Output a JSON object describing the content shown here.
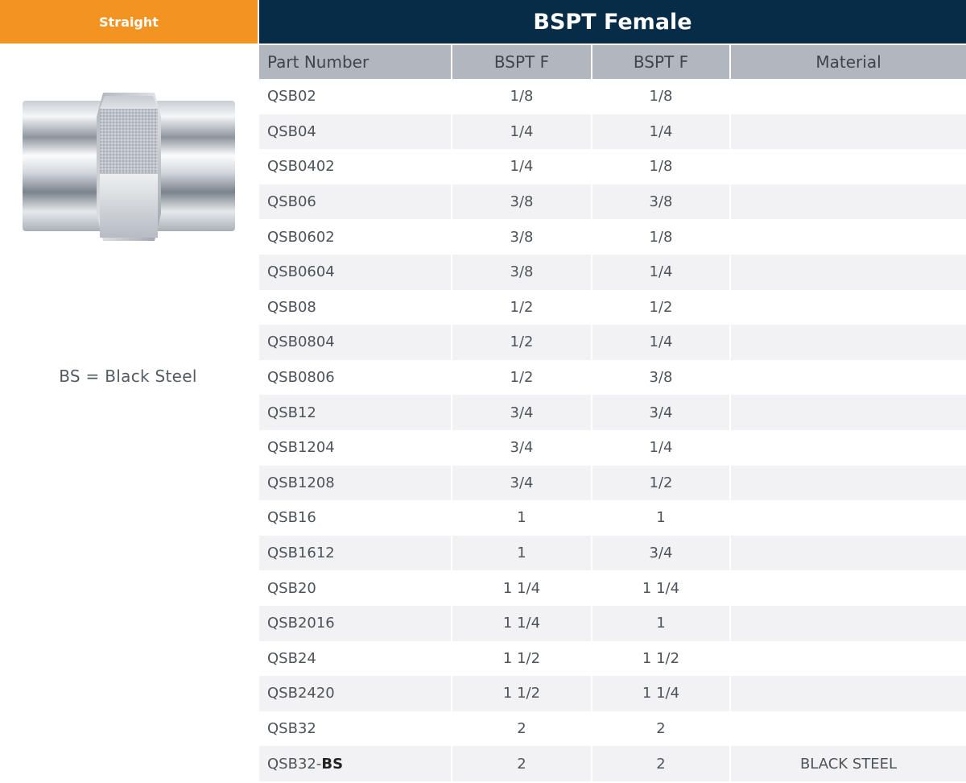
{
  "left_panel": {
    "tab_label": "Straight",
    "legend_note": "BS = Black Steel"
  },
  "table": {
    "title": "BSPT Female",
    "columns": [
      "Part Number",
      "BSPT F",
      "BSPT F",
      "Material"
    ],
    "rows": [
      {
        "part": "QSB02",
        "suffix": "",
        "f1": "1/8",
        "f2": "1/8",
        "material": ""
      },
      {
        "part": "QSB04",
        "suffix": "",
        "f1": "1/4",
        "f2": "1/4",
        "material": ""
      },
      {
        "part": "QSB0402",
        "suffix": "",
        "f1": "1/4",
        "f2": "1/8",
        "material": ""
      },
      {
        "part": "QSB06",
        "suffix": "",
        "f1": "3/8",
        "f2": "3/8",
        "material": ""
      },
      {
        "part": "QSB0602",
        "suffix": "",
        "f1": "3/8",
        "f2": "1/8",
        "material": ""
      },
      {
        "part": "QSB0604",
        "suffix": "",
        "f1": "3/8",
        "f2": "1/4",
        "material": ""
      },
      {
        "part": "QSB08",
        "suffix": "",
        "f1": "1/2",
        "f2": "1/2",
        "material": ""
      },
      {
        "part": "QSB0804",
        "suffix": "",
        "f1": "1/2",
        "f2": "1/4",
        "material": ""
      },
      {
        "part": "QSB0806",
        "suffix": "",
        "f1": "1/2",
        "f2": "3/8",
        "material": ""
      },
      {
        "part": "QSB12",
        "suffix": "",
        "f1": "3/4",
        "f2": "3/4",
        "material": ""
      },
      {
        "part": "QSB1204",
        "suffix": "",
        "f1": "3/4",
        "f2": "1/4",
        "material": ""
      },
      {
        "part": "QSB1208",
        "suffix": "",
        "f1": "3/4",
        "f2": "1/2",
        "material": ""
      },
      {
        "part": "QSB16",
        "suffix": "",
        "f1": "1",
        "f2": "1",
        "material": ""
      },
      {
        "part": "QSB1612",
        "suffix": "",
        "f1": "1",
        "f2": "3/4",
        "material": ""
      },
      {
        "part": "QSB20",
        "suffix": "",
        "f1": "1 1/4",
        "f2": "1 1/4",
        "material": ""
      },
      {
        "part": "QSB2016",
        "suffix": "",
        "f1": "1 1/4",
        "f2": "1",
        "material": ""
      },
      {
        "part": "QSB24",
        "suffix": "",
        "f1": "1 1/2",
        "f2": "1 1/2",
        "material": ""
      },
      {
        "part": "QSB2420",
        "suffix": "",
        "f1": "1 1/2",
        "f2": "1 1/4",
        "material": ""
      },
      {
        "part": "QSB32",
        "suffix": "",
        "f1": "2",
        "f2": "2",
        "material": ""
      },
      {
        "part": "QSB32-",
        "suffix": "BS",
        "f1": "2",
        "f2": "2",
        "material": "BLACK STEEL"
      }
    ]
  },
  "colors": {
    "tab_orange": "#f39321",
    "title_navy": "#072c48",
    "header_gray": "#b2b6bd",
    "row_alt": "#f2f2f4"
  },
  "icons": {
    "product_image": "straight-female-coupling-image"
  }
}
